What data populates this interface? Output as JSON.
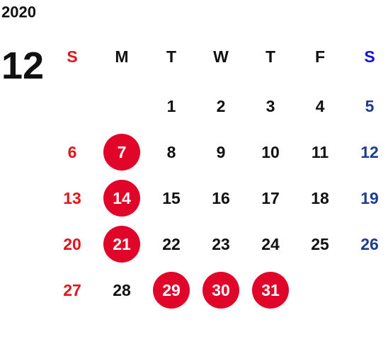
{
  "year": "2020",
  "month": "12",
  "weekdays": [
    "S",
    "M",
    "T",
    "W",
    "T",
    "F",
    "S"
  ],
  "weeks": [
    [
      null,
      null,
      {
        "label": "1"
      },
      {
        "label": "2"
      },
      {
        "label": "3"
      },
      {
        "label": "4"
      },
      {
        "label": "5"
      }
    ],
    [
      {
        "label": "6"
      },
      {
        "label": "7",
        "highlight": true
      },
      {
        "label": "8"
      },
      {
        "label": "9"
      },
      {
        "label": "10"
      },
      {
        "label": "11"
      },
      {
        "label": "12"
      }
    ],
    [
      {
        "label": "13"
      },
      {
        "label": "14",
        "highlight": true
      },
      {
        "label": "15"
      },
      {
        "label": "16"
      },
      {
        "label": "17"
      },
      {
        "label": "18"
      },
      {
        "label": "19"
      }
    ],
    [
      {
        "label": "20"
      },
      {
        "label": "21",
        "highlight": true
      },
      {
        "label": "22"
      },
      {
        "label": "23"
      },
      {
        "label": "24"
      },
      {
        "label": "25"
      },
      {
        "label": "26"
      }
    ],
    [
      {
        "label": "27"
      },
      {
        "label": "28"
      },
      {
        "label": "29",
        "highlight": true
      },
      {
        "label": "30",
        "highlight": true
      },
      {
        "label": "31",
        "highlight": true
      },
      null,
      null
    ]
  ]
}
